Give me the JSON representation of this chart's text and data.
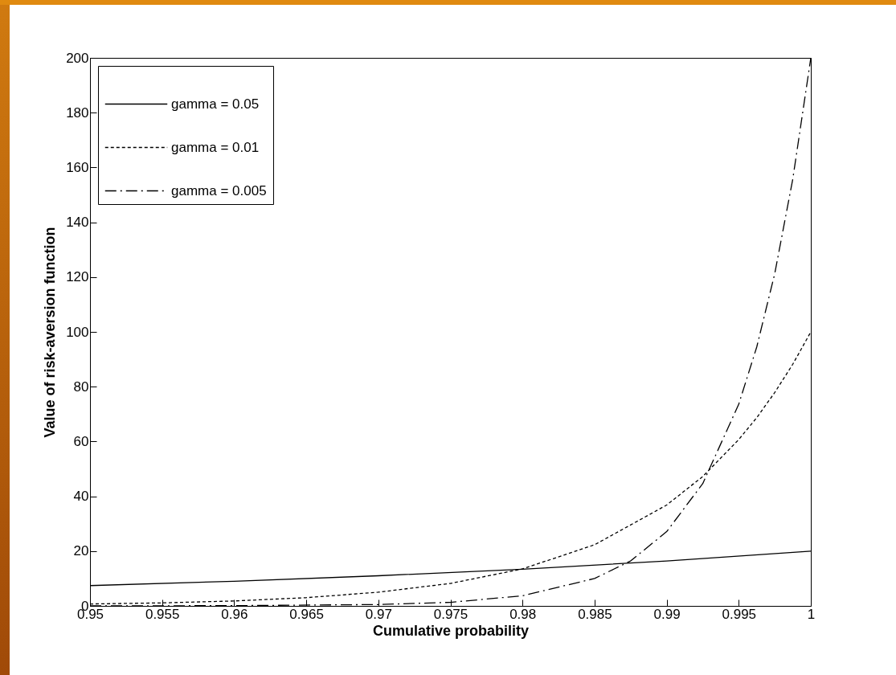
{
  "chart_data": {
    "type": "line",
    "xlabel": "Cumulative probability",
    "ylabel": "Value of risk-aversion function",
    "xlim": [
      0.95,
      1
    ],
    "xticks": [
      0.95,
      0.955,
      0.96,
      0.965,
      0.97,
      0.975,
      0.98,
      0.985,
      0.99,
      0.995,
      1
    ],
    "ylim": [
      0,
      200
    ],
    "yticks": [
      0,
      20,
      40,
      60,
      80,
      100,
      120,
      140,
      160,
      180,
      200
    ],
    "grid": false,
    "legend": "top left",
    "marker": "none",
    "series": [
      {
        "name": "gamma = 0.05",
        "color": "#000000",
        "line_style": "solid",
        "x": [
          0.95,
          0.96,
          0.97,
          0.98,
          0.99,
          1
        ],
        "values": [
          7.4,
          9.0,
          11.0,
          13.4,
          16.4,
          20
        ]
      },
      {
        "name": "gamma = 0.01",
        "color": "#000000",
        "line_style": "dotted",
        "x": [
          0.95,
          0.955,
          0.96,
          0.965,
          0.97,
          0.975,
          0.98,
          0.985,
          0.99,
          0.9925,
          0.995,
          0.99625,
          0.9975,
          0.99875,
          1
        ],
        "values": [
          0.7,
          1.1,
          1.8,
          3.0,
          5.0,
          8.2,
          13.5,
          22.3,
          36.8,
          47.2,
          60.7,
          68.7,
          77.9,
          88.2,
          100
        ]
      },
      {
        "name": "gamma = 0.005",
        "color": "#000000",
        "line_style": "dashdot",
        "x": [
          0.95,
          0.96,
          0.97,
          0.975,
          0.98,
          0.985,
          0.9875,
          0.99,
          0.9925,
          0.995,
          0.99625,
          0.9975,
          0.99875,
          1
        ],
        "values": [
          0,
          0.1,
          0.5,
          1.3,
          3.7,
          10,
          16.4,
          27.1,
          44.6,
          73.6,
          94.5,
          121.3,
          155.8,
          200
        ]
      }
    ]
  }
}
